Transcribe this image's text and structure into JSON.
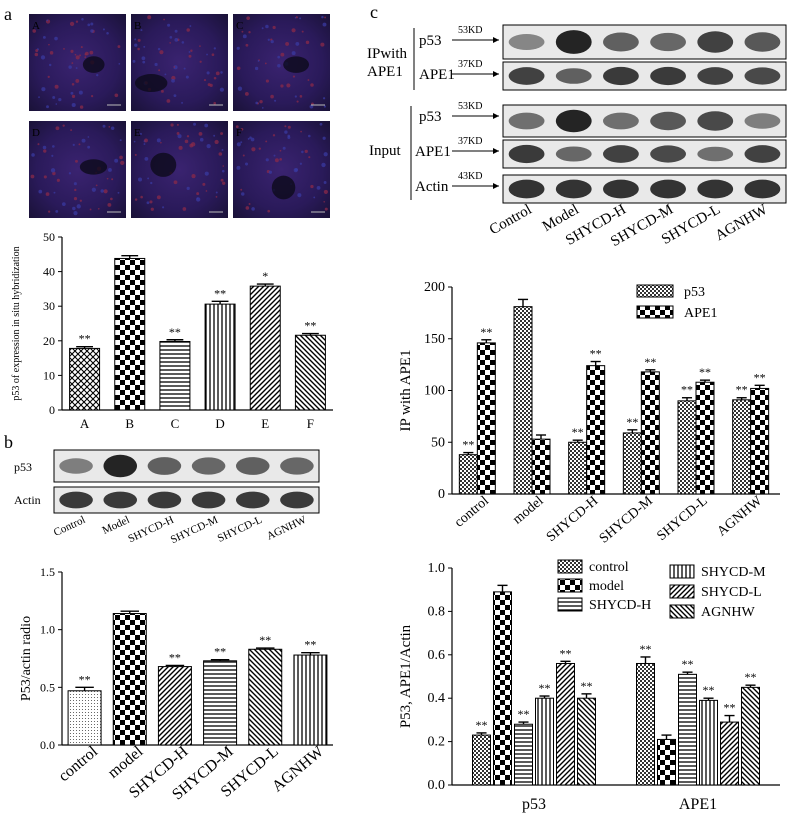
{
  "panel_letters": {
    "a": "a",
    "b": "b",
    "c": "c"
  },
  "micro_labels": [
    "A",
    "B",
    "C",
    "D",
    "E",
    "F"
  ],
  "blot_b": {
    "rows": [
      "p53",
      "Actin"
    ],
    "lanes": [
      "Control",
      "Model",
      "SHYCD-H",
      "SHYCD-M",
      "SHYCD-L",
      "AGNHW"
    ]
  },
  "blot_c": {
    "ip_prefix": "IPwith",
    "ip_name": "APE1",
    "input_label": "Input",
    "ip_rows": [
      {
        "name": "p53",
        "kd": "53KD"
      },
      {
        "name": "APE1",
        "kd": "37KD"
      }
    ],
    "input_rows": [
      {
        "name": "p53",
        "kd": "53KD"
      },
      {
        "name": "APE1",
        "kd": "37KD"
      },
      {
        "name": "Actin",
        "kd": "43KD"
      }
    ],
    "lanes": [
      "Control",
      "Model",
      "SHYCD-H",
      "SHYCD-M",
      "SHYCD-L",
      "AGNHW"
    ]
  },
  "chart_data": [
    {
      "id": "a",
      "type": "bar",
      "ylabel": "p53 of expression in situ hybridization",
      "categories": [
        "A",
        "B",
        "C",
        "D",
        "E",
        "F"
      ],
      "values": [
        17.8,
        43.8,
        19.8,
        30.6,
        35.8,
        21.6
      ],
      "errors": [
        0.5,
        0.8,
        0.5,
        0.8,
        0.6,
        0.5
      ],
      "significance": [
        "**",
        "",
        "**",
        "**",
        "*",
        "**"
      ],
      "patterns": [
        "diagcross",
        "checker",
        "hlines",
        "vlines",
        "diag",
        "diag2"
      ],
      "ylim": [
        0,
        50
      ],
      "yticks": [
        0,
        10,
        20,
        30,
        40,
        50
      ]
    },
    {
      "id": "b",
      "type": "bar",
      "ylabel": "P53/actin radio",
      "categories": [
        "control",
        "model",
        "SHYCD-H",
        "SHYCD-M",
        "SHYCD-L",
        "AGNHW"
      ],
      "values": [
        0.47,
        1.14,
        0.68,
        0.73,
        0.83,
        0.78
      ],
      "errors": [
        0.03,
        0.02,
        0.01,
        0.01,
        0.01,
        0.02
      ],
      "significance": [
        "**",
        "",
        "**",
        "**",
        "**",
        "**"
      ],
      "patterns": [
        "dots",
        "checker",
        "diag",
        "hlines",
        "diag2",
        "vlines"
      ],
      "ylim": [
        0,
        1.5
      ],
      "yticks": [
        "0.0",
        "0.5",
        "1.0",
        "1.5"
      ]
    },
    {
      "id": "c1",
      "type": "bar",
      "ylabel": "IP with APE1",
      "categories": [
        "control",
        "model",
        "SHYCD-H",
        "SHYCD-M",
        "SHYCD-L",
        "AGNHW"
      ],
      "series": [
        {
          "name": "p53",
          "values": [
            38,
            181,
            50,
            59,
            90,
            91
          ],
          "errors": [
            2,
            7,
            2,
            3,
            3,
            2
          ],
          "significance": [
            "**",
            "",
            "**",
            "**",
            "**",
            "**"
          ],
          "pattern": "smallcheck"
        },
        {
          "name": "APE1",
          "values": [
            146,
            53,
            124,
            118,
            108,
            102
          ],
          "errors": [
            3,
            4,
            4,
            2,
            2,
            3
          ],
          "significance": [
            "**",
            "",
            "**",
            "**",
            "**",
            "**"
          ],
          "pattern": "checker"
        }
      ],
      "ylim": [
        0,
        200
      ],
      "yticks": [
        0,
        50,
        100,
        150,
        200
      ],
      "legend": "top-right"
    },
    {
      "id": "c2",
      "type": "bar",
      "ylabel": "P53, APE1/Actin",
      "categories": [
        "p53",
        "APE1"
      ],
      "series": [
        {
          "name": "control",
          "values": [
            0.23,
            0.56
          ],
          "errors": [
            0.01,
            0.03
          ],
          "significance": [
            "**",
            "**"
          ],
          "pattern": "smallcheck"
        },
        {
          "name": "model",
          "values": [
            0.89,
            0.21
          ],
          "errors": [
            0.03,
            0.02
          ],
          "significance": [
            "",
            ""
          ],
          "pattern": "checker"
        },
        {
          "name": "SHYCD-H",
          "values": [
            0.28,
            0.51
          ],
          "errors": [
            0.01,
            0.01
          ],
          "significance": [
            "**",
            "**"
          ],
          "pattern": "hlines"
        },
        {
          "name": "SHYCD-M",
          "values": [
            0.4,
            0.39
          ],
          "errors": [
            0.01,
            0.01
          ],
          "significance": [
            "**",
            "**"
          ],
          "pattern": "vlines"
        },
        {
          "name": "SHYCD-L",
          "values": [
            0.56,
            0.29
          ],
          "errors": [
            0.01,
            0.03
          ],
          "significance": [
            "**",
            "**"
          ],
          "pattern": "diag"
        },
        {
          "name": "AGNHW",
          "values": [
            0.4,
            0.45
          ],
          "errors": [
            0.02,
            0.01
          ],
          "significance": [
            "**",
            "**"
          ],
          "pattern": "diag2"
        }
      ],
      "ylim": [
        0,
        1.0
      ],
      "yticks": [
        "0.0",
        "0.2",
        "0.4",
        "0.6",
        "0.8",
        "1.0"
      ],
      "legend": "top-right"
    }
  ]
}
